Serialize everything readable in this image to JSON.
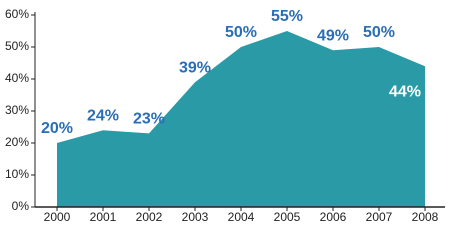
{
  "chart_data": {
    "type": "area",
    "categories": [
      "2000",
      "2001",
      "2002",
      "2003",
      "2004",
      "2005",
      "2006",
      "2007",
      "2008"
    ],
    "values": [
      20,
      24,
      23,
      39,
      50,
      55,
      49,
      50,
      44
    ],
    "value_labels": [
      "20%",
      "24%",
      "23%",
      "39%",
      "50%",
      "55%",
      "49%",
      "50%",
      "44%"
    ],
    "color": "#2a9ba6",
    "ylim": [
      0,
      60
    ],
    "yticks": [
      {
        "value": 0,
        "label": "0%"
      },
      {
        "value": 10,
        "label": "10%"
      },
      {
        "value": 20,
        "label": "20%"
      },
      {
        "value": 30,
        "label": "30%"
      },
      {
        "value": 40,
        "label": "40%"
      },
      {
        "value": 50,
        "label": "50%"
      },
      {
        "value": 60,
        "label": "60%"
      }
    ]
  }
}
